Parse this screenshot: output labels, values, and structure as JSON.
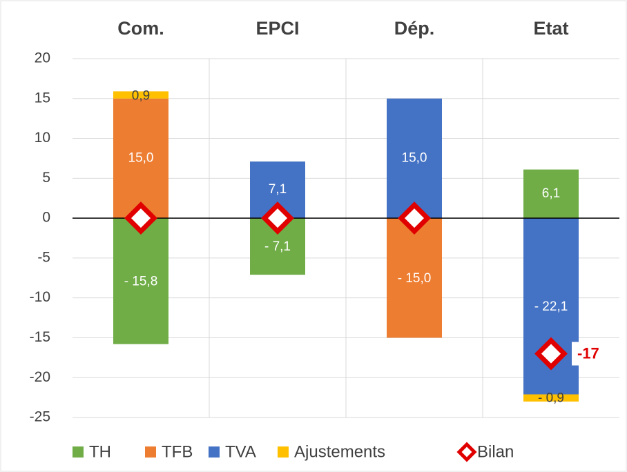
{
  "chart_data": {
    "type": "bar",
    "stacked": true,
    "categories": [
      "Com.",
      "EPCI",
      "Dép.",
      "Etat"
    ],
    "series": [
      {
        "name": "TH",
        "color": "#70ad47",
        "values": [
          -15.8,
          -7.1,
          null,
          6.1
        ],
        "value_labels": [
          "- 15,8",
          "- 7,1",
          null,
          "6,1"
        ]
      },
      {
        "name": "TFB",
        "color": "#ed7d31",
        "values": [
          15.0,
          null,
          -15.0,
          null
        ],
        "value_labels": [
          "15,0",
          null,
          "- 15,0",
          null
        ]
      },
      {
        "name": "TVA",
        "color": "#4472c4",
        "values": [
          null,
          7.1,
          15.0,
          -22.1
        ],
        "value_labels": [
          null,
          "7,1",
          "15,0",
          "- 22,1"
        ]
      },
      {
        "name": "Ajustements",
        "color": "#ffc000",
        "values": [
          0.9,
          null,
          null,
          -0.9
        ],
        "value_labels": [
          "0,9",
          null,
          null,
          "- 0,9"
        ]
      },
      {
        "name": "Bilan",
        "type": "marker",
        "color": "#e00000",
        "values": [
          0,
          0,
          0,
          -17
        ],
        "value_labels": [
          null,
          null,
          null,
          "-17"
        ]
      }
    ],
    "ylim": [
      -25,
      20
    ],
    "yticks": [
      -25,
      -20,
      -15,
      -10,
      -5,
      0,
      5,
      10,
      15,
      20
    ],
    "grid": true,
    "legend": "bottom"
  }
}
